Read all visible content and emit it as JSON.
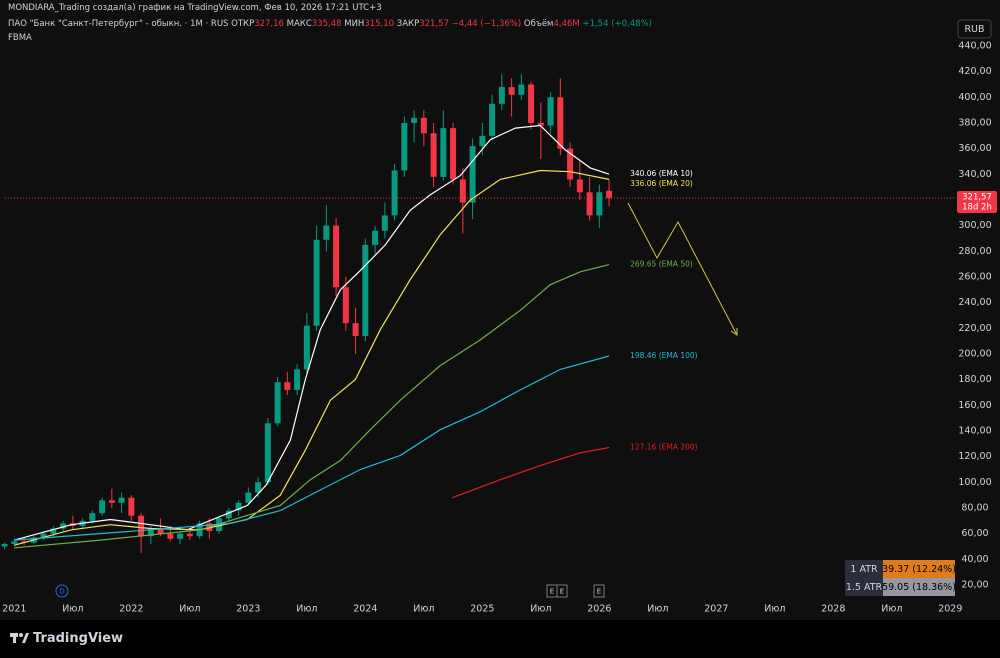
{
  "header": {
    "author_line": "MONDIARA_Trading создал(а) график на TradingView.com, Фев 10, 2026 17:21 UTC+3",
    "symbol": "ПАО \"Банк \"Санкт-Петербург\" - обыкн. · 1М · RUS",
    "stats": [
      {
        "label": "ОТКР",
        "value": "327,16"
      },
      {
        "label": "МАКС",
        "value": "335,48"
      },
      {
        "label": "МИН",
        "value": "315,10"
      },
      {
        "label": "ЗАКР",
        "value": "321,57"
      }
    ],
    "change": "−4,44 (−1,36%)",
    "volume_label": "Объём",
    "volume": "4,46M",
    "volume_change": "+1,54 (+0,48%)",
    "indicator": "FBMA",
    "currency": "RUB"
  },
  "markers": [
    "D",
    "E",
    "E",
    "E"
  ],
  "atr": {
    "rows": [
      {
        "label": "1 ATR",
        "value": "39.37 (12.24%)"
      },
      {
        "label": "1.5 ATR",
        "value": "59.05 (18.36%)"
      }
    ]
  },
  "footer": {
    "brand": "TradingView"
  },
  "chart_data": {
    "type": "candlestick",
    "up_color": "#089981",
    "down_color": "#f23645",
    "x": [
      2020.9167,
      2021,
      2021.0833,
      2021.1667,
      2021.25,
      2021.3333,
      2021.4167,
      2021.5,
      2021.5833,
      2021.6667,
      2021.75,
      2021.8333,
      2021.9167,
      2022,
      2022.0833,
      2022.1667,
      2022.25,
      2022.3333,
      2022.4167,
      2022.5,
      2022.5833,
      2022.6667,
      2022.75,
      2022.8333,
      2022.9167,
      2023,
      2023.0833,
      2023.1667,
      2023.25,
      2023.3333,
      2023.4167,
      2023.5,
      2023.5833,
      2023.6667,
      2023.75,
      2023.8333,
      2023.9167,
      2024,
      2024.0833,
      2024.1667,
      2024.25,
      2024.3333,
      2024.4167,
      2024.5,
      2024.5833,
      2024.6667,
      2024.75,
      2024.8333,
      2024.9167,
      2025,
      2025.0833,
      2025.1667,
      2025.25,
      2025.3333,
      2025.4167,
      2025.5,
      2025.5833,
      2025.6667,
      2025.75,
      2025.8333,
      2025.9167,
      2026,
      2026.0833
    ],
    "open": [
      50,
      52,
      54,
      53,
      57,
      60,
      64,
      68,
      66,
      70,
      76,
      86,
      84,
      88,
      74,
      58,
      64,
      60,
      56,
      60,
      58,
      68,
      62,
      72,
      78,
      84,
      92,
      100,
      146,
      178,
      172,
      188,
      222,
      289,
      300,
      252,
      224,
      214,
      285,
      296,
      308,
      343,
      380,
      384,
      372,
      338,
      376,
      336,
      318,
      362,
      370,
      395,
      408,
      402,
      410,
      380,
      378,
      400,
      360,
      336,
      326,
      308,
      327.16
    ],
    "high": [
      53,
      56,
      57,
      58,
      62,
      66,
      70,
      74,
      72,
      78,
      88,
      95,
      92,
      90,
      76,
      66,
      72,
      66,
      62,
      64,
      70,
      72,
      74,
      80,
      86,
      96,
      104,
      150,
      182,
      186,
      192,
      232,
      300,
      316,
      306,
      260,
      236,
      290,
      300,
      318,
      348,
      385,
      390,
      390,
      380,
      390,
      380,
      345,
      368,
      380,
      402,
      418,
      415,
      418,
      412,
      396,
      404,
      415,
      365,
      350,
      338,
      332,
      335.48
    ],
    "low": [
      48,
      50,
      51,
      52,
      55,
      58,
      62,
      63,
      64,
      68,
      74,
      80,
      76,
      70,
      45,
      52,
      58,
      54,
      52,
      55,
      56,
      56,
      60,
      70,
      74,
      82,
      88,
      98,
      144,
      168,
      168,
      184,
      218,
      280,
      245,
      218,
      200,
      210,
      278,
      290,
      304,
      338,
      365,
      362,
      330,
      335,
      332,
      294,
      305,
      355,
      366,
      390,
      385,
      398,
      375,
      352,
      372,
      355,
      330,
      320,
      304,
      298,
      315.1
    ],
    "close": [
      52,
      54,
      53,
      57,
      60,
      64,
      68,
      66,
      70,
      76,
      86,
      84,
      88,
      74,
      58,
      64,
      60,
      56,
      60,
      58,
      68,
      62,
      72,
      78,
      84,
      92,
      100,
      146,
      178,
      172,
      188,
      222,
      289,
      300,
      252,
      224,
      214,
      285,
      296,
      308,
      343,
      380,
      384,
      372,
      338,
      376,
      336,
      318,
      362,
      370,
      395,
      408,
      402,
      410,
      380,
      378,
      400,
      360,
      336,
      326,
      308,
      326,
      321.57
    ],
    "emas": [
      {
        "color": "#ffffff",
        "label": "340.06 (EMA 10)",
        "x": [
          2021,
          2021.4872,
          2021.8205,
          2022.1624,
          2022.4786,
          2022.9915,
          2023.1538,
          2023.359,
          2023.4872,
          2023.6154,
          2023.7863,
          2023.9573,
          2024.1709,
          2024.3846,
          2024.5556,
          2024.812,
          2025.0684,
          2025.2821,
          2025.4957,
          2025.7094,
          2025.9231,
          2026.0833
        ],
        "values": [
          55,
          67,
          71,
          67,
          63,
          82,
          98,
          133,
          180,
          219,
          250,
          265,
          285,
          312,
          324,
          339,
          367,
          376,
          378,
          359,
          345,
          340.06
        ]
      },
      {
        "color": "#f5e15a",
        "label": "336.06 (EMA 20)",
        "x": [
          2021,
          2021.4872,
          2021.8205,
          2022.1624,
          2022.5897,
          2022.9915,
          2023.2735,
          2023.4872,
          2023.7009,
          2023.9145,
          2024.1282,
          2024.3846,
          2024.641,
          2024.8974,
          2025.1538,
          2025.4957,
          2025.7521,
          2026.0833
        ],
        "values": [
          51,
          63,
          67,
          64,
          63,
          71,
          90,
          125,
          164,
          180,
          219,
          258,
          293,
          320,
          336,
          343,
          342,
          336.06
        ]
      },
      {
        "color": "#6fae4a",
        "label": "269.65 (EMA 50)",
        "x": [
          2021,
          2021.735,
          2022.5897,
          2023.0171,
          2023.2735,
          2023.5299,
          2023.7863,
          2024.0427,
          2024.2991,
          2024.641,
          2024.9829,
          2025.3248,
          2025.5812,
          2025.8376,
          2026.0833
        ],
        "values": [
          49,
          55,
          63,
          75,
          82,
          102,
          117,
          141,
          164,
          191,
          211,
          234,
          254,
          264,
          269.65
        ]
      },
      {
        "color": "#22b8d6",
        "label": "198.46 (EMA 100)",
        "x": [
          2021,
          2022.1624,
          2022.8462,
          2023.2735,
          2023.6154,
          2023.9573,
          2024.2991,
          2024.641,
          2024.9829,
          2025.3248,
          2025.6667,
          2026.0833
        ],
        "values": [
          55,
          63,
          68,
          78,
          94,
          110,
          121,
          141,
          155,
          172,
          188,
          198.46
        ]
      },
      {
        "color": "#e3201f",
        "label": "127.16 (EMA 200)",
        "x": [
          2024.7436,
          2025.1538,
          2025.4957,
          2025.8376,
          2026.0833
        ],
        "values": [
          88,
          102,
          113,
          123,
          127.16
        ]
      }
    ],
    "current_price": 321.57,
    "current_price_label": "321,57",
    "countdown": "18d 2h",
    "xlim": [
      2020.92,
      2029.04
    ],
    "xticks": [
      2021,
      {
        "value": 2021.5,
        "label": "Июл"
      },
      2022,
      {
        "value": 2022.5,
        "label": "Июл"
      },
      2023,
      {
        "value": 2023.5,
        "label": "Июл"
      },
      2024,
      {
        "value": 2024.5,
        "label": "Июл"
      },
      2025,
      {
        "value": 2025.5,
        "label": "Июл"
      },
      2026,
      {
        "value": 2026.5,
        "label": "Июл"
      },
      2027,
      {
        "value": 2027.5,
        "label": "Июл"
      },
      2028,
      {
        "value": 2028.5,
        "label": "Июл"
      },
      2029
    ],
    "ylim": [
      8.3,
      461.8
    ],
    "yticks": [
      {
        "value": 20,
        "label": "20,00"
      },
      {
        "value": 40,
        "label": "40,00"
      },
      {
        "value": 60,
        "label": "60,00"
      },
      {
        "value": 80,
        "label": "80,00"
      },
      {
        "value": 100,
        "label": "100,00"
      },
      {
        "value": 120,
        "label": "120,00"
      },
      {
        "value": 140,
        "label": "140,00"
      },
      {
        "value": 160,
        "label": "160,00"
      },
      {
        "value": 180,
        "label": "180,00"
      },
      {
        "value": 200,
        "label": "200,00"
      },
      {
        "value": 220,
        "label": "220,00"
      },
      {
        "value": 240,
        "label": "240,00"
      },
      {
        "value": 260,
        "label": "260,00"
      },
      {
        "value": 280,
        "label": "280,00"
      },
      {
        "value": 300,
        "label": "300,00"
      },
      {
        "value": 320,
        "label": "320,00"
      },
      {
        "value": 340,
        "label": "340,00"
      },
      {
        "value": 360,
        "label": "360,00"
      },
      {
        "value": 380,
        "label": "380,00"
      },
      {
        "value": 400,
        "label": "400,00"
      },
      {
        "value": 420,
        "label": "420,00"
      },
      {
        "value": 440,
        "label": "440,00"
      }
    ],
    "grid": false
  }
}
